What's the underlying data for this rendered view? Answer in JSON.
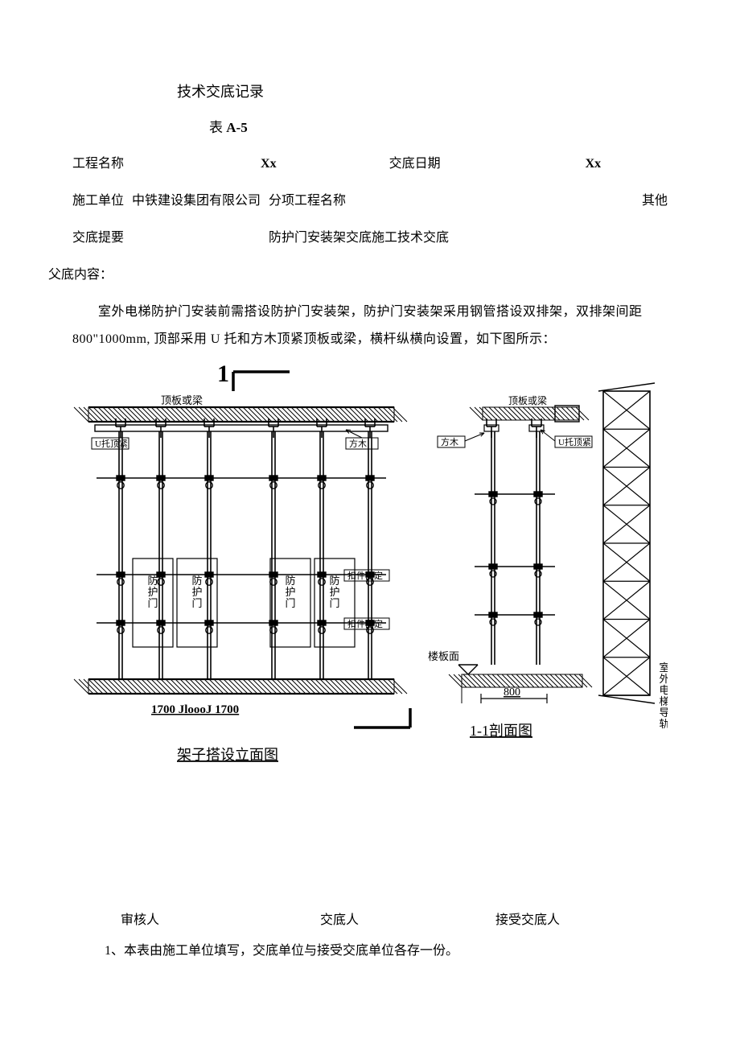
{
  "doc": {
    "title": "技术交底记录",
    "table_no_prefix": "表 ",
    "table_no": "A-5",
    "fields": {
      "project_name_label": "工程名称",
      "project_name_value": "Xx",
      "date_label": "交底日期",
      "date_value": "Xx",
      "constructor_label": "施工单位",
      "constructor_value": "中铁建设集团有限公司",
      "subproject_label": "分项工程名称",
      "subproject_value": "其他",
      "summary_label": "交底提要",
      "summary_value": "防护门安装架交底施工技术交底",
      "content_label": "父底内容："
    },
    "paragraph": "室外电梯防护门安装前需搭设防护门安装架，防护门安装架采用钢管搭设双排架，双排架间距 800\"1000mm, 顶部采用 U 托和方木顶紧顶板或梁，横杆纵横向设置，如下图所示：",
    "diagram": {
      "labels": {
        "section_mark": "1",
        "slab_beam": "顶板或梁",
        "u_brace": "U托顶紧",
        "timber": "方木",
        "clamp_fix": "扣件固定",
        "door": "防护门",
        "floor": "楼板面",
        "rail": "室外电梯导轨",
        "dim_left": "1700 JloooJ 1700",
        "dim_800": "800",
        "caption_left": "架子搭设立面图",
        "caption_right": "1-1剖面图"
      },
      "colors": {
        "line": "#000000",
        "hatch": "#000000",
        "bg": "#ffffff"
      },
      "line_w": {
        "thin": 1,
        "med": 1.6,
        "thick": 2.2
      }
    },
    "signatures": {
      "reviewer": "审核人",
      "disclose": "交底人",
      "receive": "接受交底人"
    },
    "footnote": "1、本表由施工单位填写，交底单位与接受交底单位各存一份。"
  }
}
